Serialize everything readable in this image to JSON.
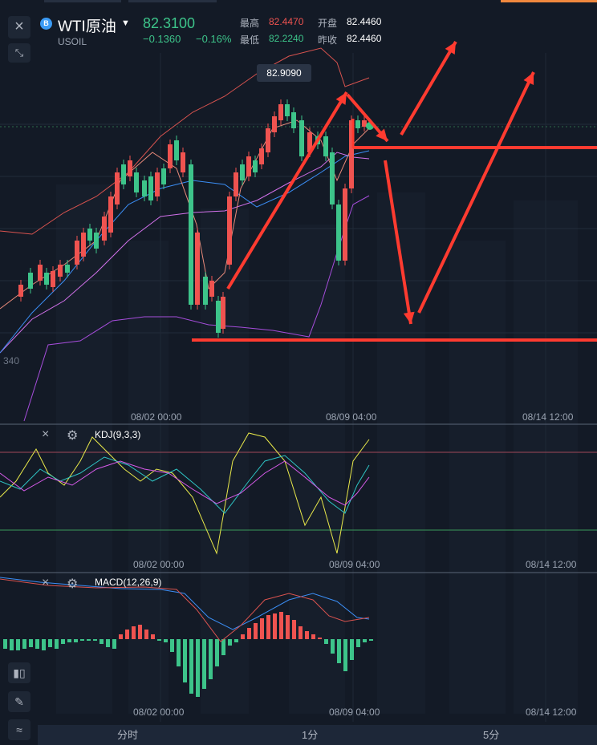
{
  "symbol": {
    "badge": "B",
    "name": "WTI原油",
    "caret": "▼",
    "code": "USOIL",
    "price": "82.3100",
    "change": "−0.1360",
    "change_pct": "−0.16%"
  },
  "stats": {
    "high_label": "最高",
    "high_value": "82.4470",
    "low_label": "最低",
    "low_value": "82.2240",
    "open_label": "开盘",
    "open_value": "82.4460",
    "prev_label": "昨收",
    "prev_value": "82.4460"
  },
  "main_chart": {
    "tooltip_price": "82.9090",
    "partial_axis_label": "340",
    "time_labels": [
      "08/02 00:00",
      "08/09 04:00",
      "08/14 12:00"
    ]
  },
  "kdj": {
    "name": "KDJ(9,3,3)",
    "time_labels": [
      "08/02 00:00",
      "08/09 04:00",
      "08/14 12:00"
    ]
  },
  "macd": {
    "name": "MACD(12,26,9)",
    "time_labels": [
      "08/02 00:00",
      "08/09 04:00",
      "08/14 12:00"
    ]
  },
  "icons": {
    "close": "×",
    "shrink": "⤡",
    "gear": "⚙",
    "pencil": "✎",
    "indicator": "≈"
  },
  "bottom_tabs": [
    "分时",
    "1分",
    "5分"
  ],
  "colors": {
    "up": "#ef5350",
    "down": "#3dc48a",
    "accent": "#f0883e",
    "background": "#131a26",
    "annotation": "#ff3b30"
  }
}
